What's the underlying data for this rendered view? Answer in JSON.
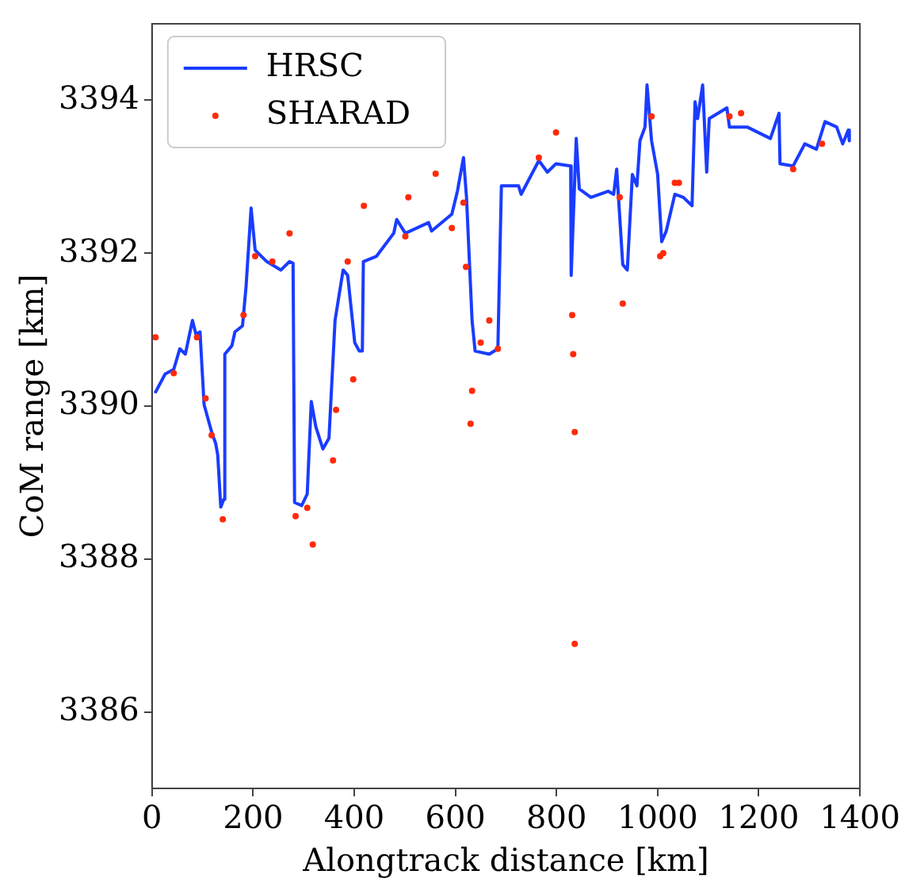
{
  "chart_data": {
    "type": "line",
    "xlabel": "Alongtrack distance [km]",
    "ylabel": "CoM range [km]",
    "xlim": [
      0,
      1400
    ],
    "xticks": [
      0,
      200,
      400,
      600,
      800,
      1000,
      1200,
      1400
    ],
    "ylim": [
      3385,
      3395
    ],
    "yticks": [
      3386,
      3388,
      3390,
      3392,
      3394
    ],
    "grid": false,
    "legend": "top left",
    "series": [
      {
        "name": "HRSC",
        "color": "#1a3cff",
        "marker": "none",
        "x": [
          6,
          26,
          43,
          55,
          66,
          80,
          87,
          95,
          103,
          118,
          126,
          130,
          136,
          142,
          144,
          158,
          164,
          179,
          186,
          196,
          204,
          227,
          255,
          272,
          279,
          282,
          296,
          307,
          315,
          324,
          338,
          350,
          362,
          378,
          387,
          401,
          410,
          416,
          418,
          444,
          478,
          484,
          501,
          547,
          553,
          593,
          604,
          616,
          622,
          633,
          639,
          667,
          684,
          691,
          725,
          730,
          765,
          782,
          799,
          828,
          829,
          839,
          845,
          868,
          902,
          913,
          919,
          931,
          940,
          950,
          959,
          965,
          975,
          979,
          988,
          1000,
          1008,
          1017,
          1034,
          1051,
          1068,
          1074,
          1079,
          1089,
          1097,
          1102,
          1137,
          1142,
          1177,
          1223,
          1240,
          1242,
          1268,
          1291,
          1314,
          1331,
          1354,
          1366,
          1377,
          1379
        ],
        "values": [
          3390.17,
          3390.42,
          3390.48,
          3390.75,
          3390.68,
          3391.12,
          3390.94,
          3390.97,
          3390.02,
          3389.66,
          3389.51,
          3389.36,
          3388.68,
          3388.78,
          3390.68,
          3390.79,
          3390.97,
          3391.05,
          3391.56,
          3392.59,
          3392.04,
          3391.89,
          3391.78,
          3391.89,
          3391.87,
          3388.74,
          3388.7,
          3388.85,
          3390.06,
          3389.73,
          3389.44,
          3389.58,
          3391.12,
          3391.78,
          3391.71,
          3390.83,
          3390.72,
          3390.72,
          3391.89,
          3391.96,
          3392.26,
          3392.44,
          3392.26,
          3392.4,
          3392.29,
          3392.51,
          3392.81,
          3393.25,
          3392.73,
          3391.12,
          3390.72,
          3390.68,
          3390.75,
          3392.88,
          3392.88,
          3392.77,
          3393.21,
          3393.06,
          3393.17,
          3393.14,
          3391.71,
          3393.5,
          3392.84,
          3392.73,
          3392.81,
          3392.77,
          3393.1,
          3391.85,
          3391.78,
          3393.03,
          3392.88,
          3393.47,
          3393.65,
          3394.2,
          3393.47,
          3393.03,
          3392.15,
          3392.29,
          3392.77,
          3392.73,
          3392.62,
          3393.98,
          3393.76,
          3394.2,
          3393.06,
          3393.76,
          3393.9,
          3393.65,
          3393.65,
          3393.5,
          3393.83,
          3393.17,
          3393.14,
          3393.43,
          3393.36,
          3393.72,
          3393.65,
          3393.43,
          3393.61,
          3393.47
        ]
      },
      {
        "name": "SHARAD",
        "type": "scatter",
        "color": "#ff2a0a",
        "marker": "circle",
        "x": [
          7,
          43,
          89,
          106,
          118,
          140,
          181,
          204,
          238,
          272,
          284,
          307,
          318,
          358,
          364,
          387,
          398,
          419,
          501,
          507,
          561,
          593,
          616,
          621,
          630,
          633,
          650,
          667,
          684,
          765,
          799,
          831,
          833,
          836,
          836,
          925,
          931,
          988,
          1005,
          1011,
          1034,
          1042,
          1142,
          1165,
          1268,
          1325
        ],
        "values": [
          3390.9,
          3390.43,
          3390.9,
          3390.1,
          3389.62,
          3388.52,
          3391.19,
          3391.96,
          3391.89,
          3392.26,
          3388.56,
          3388.67,
          3388.19,
          3389.29,
          3389.95,
          3391.89,
          3390.35,
          3392.62,
          3392.22,
          3392.73,
          3393.04,
          3392.33,
          3392.66,
          3391.82,
          3389.77,
          3390.2,
          3390.83,
          3391.12,
          3390.75,
          3393.25,
          3393.58,
          3391.19,
          3390.68,
          3389.66,
          3386.89,
          3392.73,
          3391.34,
          3393.79,
          3391.96,
          3392.0,
          3392.92,
          3392.92,
          3393.79,
          3393.83,
          3393.1,
          3393.43
        ]
      }
    ]
  }
}
